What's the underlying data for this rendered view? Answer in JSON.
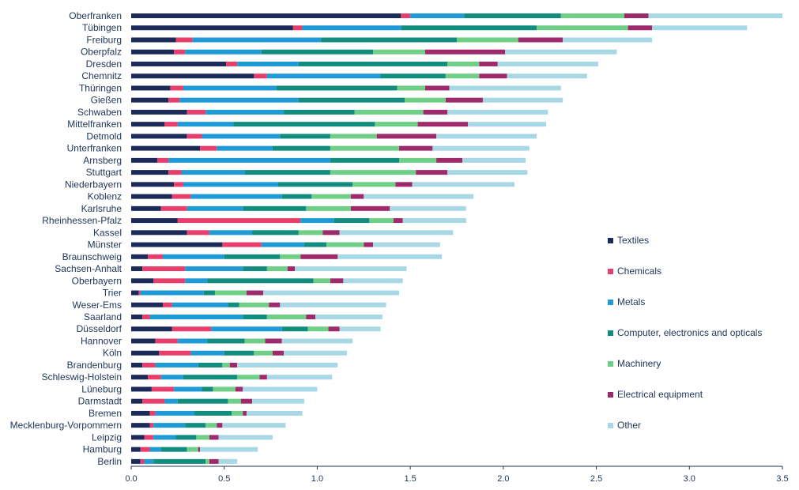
{
  "chart_data": {
    "type": "bar",
    "orientation": "horizontal",
    "stacked": true,
    "title": "",
    "xlabel": "",
    "ylabel": "",
    "xlim": [
      0,
      3.5
    ],
    "xticks": [
      "0.0",
      "0.5",
      "1.0",
      "1.5",
      "2.0",
      "2.5",
      "3.0",
      "3.5"
    ],
    "grid": false,
    "legend_position": "right",
    "categories": [
      "Oberfranken",
      "Tübingen",
      "Freiburg",
      "Oberpfalz",
      "Dresden",
      "Chemnitz",
      "Thüringen",
      "Gießen",
      "Schwaben",
      "Mittelfranken",
      "Detmold",
      "Unterfranken",
      "Arnsberg",
      "Stuttgart",
      "Niederbayern",
      "Koblenz",
      "Karlsruhe",
      "Rheinhessen-Pfalz",
      "Kassel",
      "Münster",
      "Braunschweig",
      "Sachsen-Anhalt",
      "Oberbayern",
      "Trier",
      "Weser-Ems",
      "Saarland",
      "Düsseldorf",
      "Hannover",
      "Köln",
      "Brandenburg",
      "Schleswig-Holstein",
      "Lüneburg",
      "Darmstadt",
      "Bremen",
      "Mecklenburg-Vorpommern",
      "Leipzig",
      "Hamburg",
      "Berlin"
    ],
    "series": [
      {
        "name": "Textiles",
        "color": "#1b2a58",
        "values": [
          1.45,
          0.87,
          0.24,
          0.23,
          0.51,
          0.66,
          0.21,
          0.2,
          0.3,
          0.18,
          0.3,
          0.37,
          0.14,
          0.2,
          0.23,
          0.22,
          0.16,
          0.25,
          0.3,
          0.49,
          0.09,
          0.06,
          0.12,
          0.04,
          0.17,
          0.06,
          0.22,
          0.13,
          0.15,
          0.06,
          0.09,
          0.11,
          0.06,
          0.1,
          0.1,
          0.07,
          0.05,
          0.05
        ]
      },
      {
        "name": "Chemicals",
        "color": "#e83e6c",
        "values": [
          0.05,
          0.05,
          0.09,
          0.06,
          0.06,
          0.07,
          0.07,
          0.06,
          0.1,
          0.07,
          0.08,
          0.09,
          0.06,
          0.07,
          0.05,
          0.1,
          0.14,
          0.66,
          0.12,
          0.21,
          0.08,
          0.23,
          0.17,
          0.01,
          0.05,
          0.04,
          0.21,
          0.12,
          0.17,
          0.07,
          0.07,
          0.12,
          0.12,
          0.03,
          0.02,
          0.05,
          0.05,
          0.02
        ]
      },
      {
        "name": "Metals",
        "color": "#1e9bd7",
        "values": [
          0.29,
          0.53,
          0.69,
          0.41,
          0.33,
          0.61,
          0.5,
          0.64,
          0.42,
          0.3,
          0.42,
          0.3,
          0.87,
          0.34,
          0.51,
          0.49,
          0.3,
          0.18,
          0.23,
          0.23,
          0.33,
          0.31,
          0.12,
          0.34,
          0.3,
          0.5,
          0.38,
          0.16,
          0.18,
          0.23,
          0.12,
          0.15,
          0.07,
          0.21,
          0.17,
          0.12,
          0.06,
          0.05
        ]
      },
      {
        "name": "Computer, electronics and opticals",
        "color": "#118c7e",
        "values": [
          0.52,
          0.73,
          0.73,
          0.6,
          0.8,
          0.35,
          0.65,
          0.57,
          0.38,
          0.76,
          0.27,
          0.31,
          0.37,
          0.46,
          0.4,
          0.16,
          0.34,
          0.19,
          0.25,
          0.12,
          0.3,
          0.13,
          0.57,
          0.06,
          0.06,
          0.13,
          0.14,
          0.2,
          0.16,
          0.13,
          0.29,
          0.06,
          0.27,
          0.2,
          0.11,
          0.11,
          0.14,
          0.28
        ]
      },
      {
        "name": "Machinery",
        "color": "#6fcf86",
        "values": [
          0.34,
          0.49,
          0.33,
          0.28,
          0.17,
          0.18,
          0.15,
          0.22,
          0.37,
          0.23,
          0.25,
          0.37,
          0.2,
          0.46,
          0.23,
          0.21,
          0.24,
          0.13,
          0.13,
          0.2,
          0.11,
          0.11,
          0.09,
          0.17,
          0.16,
          0.21,
          0.11,
          0.11,
          0.1,
          0.04,
          0.12,
          0.12,
          0.07,
          0.06,
          0.06,
          0.07,
          0.06,
          0.02
        ]
      },
      {
        "name": "Electrical equipment",
        "color": "#9e2a6c",
        "values": [
          0.13,
          0.13,
          0.24,
          0.43,
          0.1,
          0.15,
          0.13,
          0.2,
          0.13,
          0.27,
          0.32,
          0.18,
          0.14,
          0.17,
          0.09,
          0.07,
          0.21,
          0.05,
          0.09,
          0.05,
          0.2,
          0.04,
          0.07,
          0.09,
          0.06,
          0.05,
          0.06,
          0.09,
          0.06,
          0.04,
          0.04,
          0.04,
          0.06,
          0.02,
          0.03,
          0.05,
          0.01,
          0.05
        ]
      },
      {
        "name": "Other",
        "color": "#a8d8e6",
        "values": [
          0.72,
          0.51,
          0.48,
          0.6,
          0.54,
          0.43,
          0.6,
          0.43,
          0.54,
          0.42,
          0.54,
          0.52,
          0.34,
          0.43,
          0.55,
          0.59,
          0.41,
          0.34,
          0.61,
          0.36,
          0.56,
          0.6,
          0.32,
          0.73,
          0.57,
          0.36,
          0.22,
          0.38,
          0.34,
          0.54,
          0.35,
          0.4,
          0.28,
          0.3,
          0.34,
          0.29,
          0.31,
          0.1
        ]
      }
    ]
  }
}
